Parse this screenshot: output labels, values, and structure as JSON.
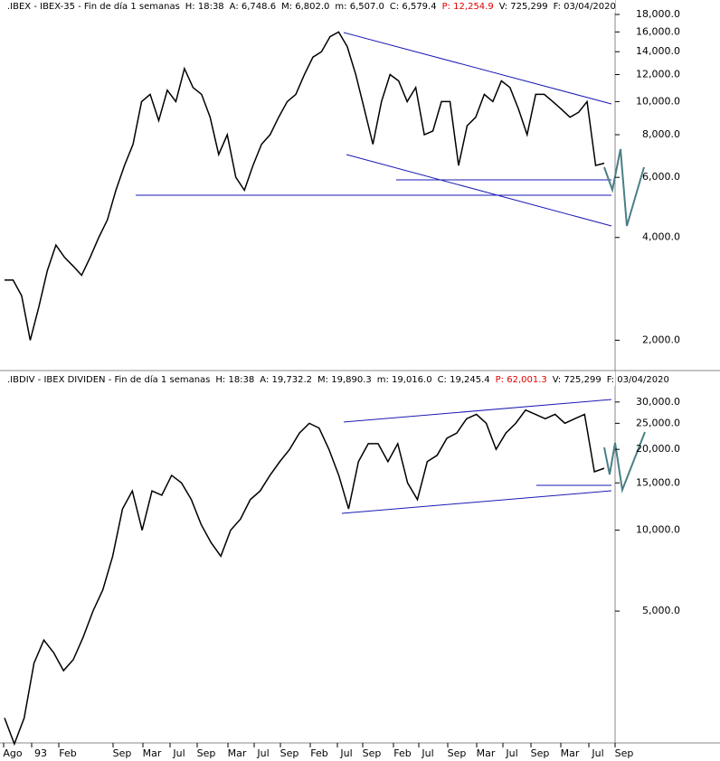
{
  "chart_data": [
    {
      "type": "line",
      "header": [
        ".IBEX - IBEX-35 - Fin de día 1 semanas",
        "H: 18:38",
        "A: 6,748.6",
        "M: 6,802.0",
        "m: 6,507.0",
        "C: 6,579.4",
        "P: 12,254.9",
        "V: 725,299",
        "F: 03/04/2020"
      ],
      "header_highlight": "P: 12,254.9",
      "log_scale": true,
      "ylim": [
        1650,
        18900
      ],
      "yticks": [
        {
          "value": 2000,
          "label": "2,000.0"
        },
        {
          "value": 4000,
          "label": "4,000.0"
        },
        {
          "value": 6000,
          "label": "6,000.0"
        },
        {
          "value": 8000,
          "label": "8,000.0"
        },
        {
          "value": 10000,
          "label": "10,000.0"
        },
        {
          "value": 12000,
          "label": "12,000.0"
        },
        {
          "value": 14000,
          "label": "14,000.0"
        },
        {
          "value": 16000,
          "label": "16,000.0"
        },
        {
          "value": 18000,
          "label": "18,000.0"
        }
      ],
      "series": [
        {
          "color": "#000000",
          "values": [
            3000,
            3000,
            2700,
            2000,
            2500,
            3200,
            3800,
            3500,
            3300,
            3100,
            3500,
            4000,
            4500,
            5500,
            6500,
            7500,
            10000,
            10500,
            8800,
            10800,
            10000,
            12500,
            11000,
            10500,
            9000,
            7000,
            8000,
            6000,
            5500,
            6500,
            7500,
            8000,
            9000,
            10000,
            10500,
            12000,
            13500,
            14000,
            15500,
            16000,
            14500,
            12000,
            9500,
            7500,
            10000,
            12000,
            11500,
            10000,
            11000,
            8000,
            8200,
            10000,
            10000,
            6500,
            8500,
            9000,
            10500,
            10000,
            11500,
            11000,
            9500,
            8000,
            10500,
            10500,
            10000,
            9500,
            9000,
            9300,
            10000,
            6500,
            6600
          ]
        }
      ]
    },
    {
      "type": "line",
      "header": [
        ".IBDIV - IBEX DIVIDEN - Fin de día 1 semanas",
        "H: 18:38",
        "A: 19,732.2",
        "M: 19,890.3",
        "m: 19,016.0",
        "C: 19,245.4",
        "P: 62,001.3",
        "V: 725,299",
        "F: 03/04/2020"
      ],
      "header_highlight": "P: 62,001.3",
      "log_scale": true,
      "ylim": [
        1640,
        33650
      ],
      "yticks": [
        {
          "value": 5000,
          "label": "5,000.0"
        },
        {
          "value": 10000,
          "label": "10,000.0"
        },
        {
          "value": 15000,
          "label": "15,000.0"
        },
        {
          "value": 20000,
          "label": "20,000.0"
        },
        {
          "value": 25000,
          "label": "25,000.0"
        },
        {
          "value": 30000,
          "label": "30,000.0"
        }
      ],
      "series": [
        {
          "color": "#000000",
          "values": [
            2000,
            1600,
            2000,
            3200,
            3900,
            3500,
            3000,
            3300,
            4000,
            5000,
            6000,
            8000,
            12000,
            14000,
            10000,
            14000,
            13500,
            16000,
            15000,
            13000,
            10500,
            9000,
            8000,
            10000,
            11000,
            13000,
            14000,
            16000,
            18000,
            20000,
            23000,
            25000,
            24000,
            20000,
            16000,
            12000,
            18000,
            21000,
            21000,
            18000,
            21000,
            15000,
            13000,
            18000,
            19000,
            22000,
            23000,
            26000,
            27000,
            25000,
            20000,
            23000,
            25000,
            28000,
            27000,
            26000,
            27000,
            25000,
            26000,
            27000,
            16500,
            17000
          ]
        }
      ],
      "xtick_labels": [
        "Ago",
        "93",
        "Feb",
        "Sep",
        "Mar",
        "Jul",
        "Sep",
        "Mar",
        "Jul",
        "Sep",
        "Feb",
        "Jul",
        "Sep",
        "Feb",
        "Jul",
        "Sep",
        "Mar",
        "Jul",
        "Sep",
        "Mar",
        "Jul",
        "Sep"
      ]
    }
  ]
}
